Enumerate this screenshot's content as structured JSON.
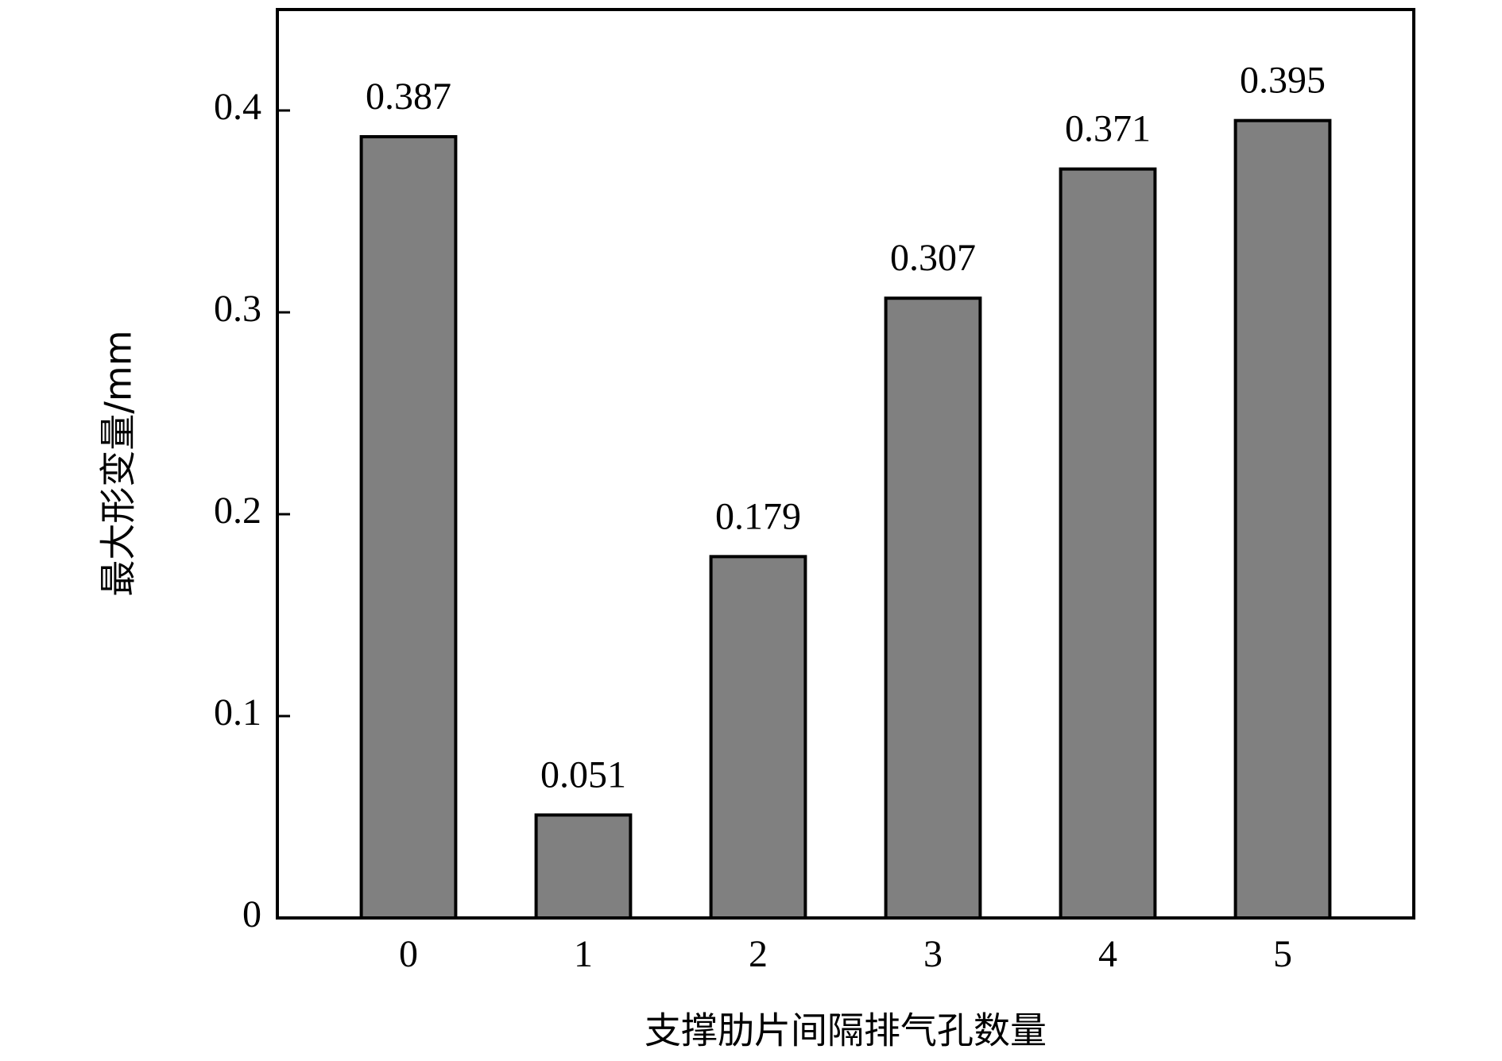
{
  "chart_data": {
    "type": "bar",
    "x_label": "支撑肋片间隔排气孔数量",
    "y_label": "最大形变量/mm",
    "categories": [
      "0",
      "1",
      "2",
      "3",
      "4",
      "5"
    ],
    "values": [
      0.387,
      0.051,
      0.179,
      0.307,
      0.371,
      0.395
    ],
    "color": "#808080",
    "ylim": [
      0,
      0.45
    ],
    "yticks": [
      0,
      0.1,
      0.2,
      0.3,
      0.4
    ],
    "grid": false
  }
}
